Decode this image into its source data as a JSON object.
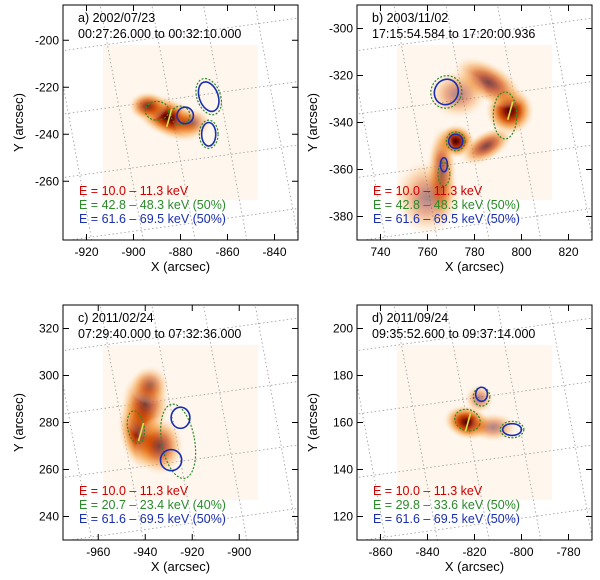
{
  "colors": {
    "low_energy": "#cc0000",
    "mid_energy": "#2a8a2a",
    "high_energy": "#1a2fb0",
    "overlay": "#d8e24a",
    "grid": "#9a9a9a"
  },
  "chart_data": [
    {
      "type": "heatmap",
      "panel": "a",
      "date": "a)  2002/07/23",
      "time_range": "00:27:26.000 to 00:32:10.000",
      "xlabel": "X (arcsec)",
      "ylabel": "Y (arcsec)",
      "xlim": [
        -930,
        -830
      ],
      "ylim": [
        -285,
        -185
      ],
      "xticks": [
        -920,
        -900,
        -880,
        -860,
        -840
      ],
      "yticks": [
        -260,
        -240,
        -220,
        -200
      ],
      "xtick_labels": [
        "-920",
        "-900",
        "-880",
        "-860",
        "-840"
      ],
      "ytick_labels": [
        "-260",
        "-240",
        "-220",
        "-200"
      ],
      "legend": [
        {
          "text": "E = 10.0 –  11.3 keV",
          "color": "#cc0000"
        },
        {
          "text": "E = 42.8 –  48.3 keV (50%)",
          "color": "#2a8a2a"
        },
        {
          "text": "E = 61.6 –  69.5 keV (50%)",
          "color": "#1a2fb0"
        }
      ],
      "emission": [
        {
          "x": -885,
          "y": -233,
          "sx": 8,
          "sy": 4,
          "rot": -25,
          "peak": 1.0
        },
        {
          "x": -894,
          "y": -228,
          "sx": 4,
          "sy": 3,
          "rot": 0,
          "peak": 0.6
        },
        {
          "x": -875,
          "y": -235,
          "sx": 4,
          "sy": 3,
          "rot": 0,
          "peak": 0.35
        }
      ],
      "contours": [
        {
          "band": "mid",
          "x": -890,
          "y": -230,
          "rx": 5,
          "ry": 4,
          "rot": 0
        },
        {
          "band": "mid",
          "x": -868,
          "y": -224,
          "rx": 5,
          "ry": 8,
          "rot": 20
        },
        {
          "band": "mid",
          "x": -868,
          "y": -240,
          "rx": 4,
          "ry": 6,
          "rot": 0
        },
        {
          "band": "mid",
          "x": -880,
          "y": -232,
          "rx": 4,
          "ry": 4,
          "rot": 0
        },
        {
          "band": "high",
          "x": -868,
          "y": -224,
          "rx": 4,
          "ry": 6.5,
          "rot": 20
        },
        {
          "band": "high",
          "x": -868,
          "y": -240,
          "rx": 3,
          "ry": 5,
          "rot": 0
        },
        {
          "band": "high",
          "x": -878,
          "y": -232,
          "rx": 3.5,
          "ry": 3.5,
          "rot": 0
        }
      ]
    },
    {
      "type": "heatmap",
      "panel": "b",
      "date": "b)  2003/11/02",
      "time_range": "17:15:54.584 to 17:20:00.936",
      "xlabel": "X (arcsec)",
      "ylabel": "Y (arcsec)",
      "xlim": [
        730,
        830
      ],
      "ylim": [
        -390,
        -290
      ],
      "xticks": [
        740,
        760,
        780,
        800,
        820
      ],
      "yticks": [
        -380,
        -360,
        -340,
        -320,
        -300
      ],
      "xtick_labels": [
        "740",
        "760",
        "780",
        "800",
        "820"
      ],
      "ytick_labels": [
        "-380",
        "-360",
        "-340",
        "-320",
        "-300"
      ],
      "legend": [
        {
          "text": "E = 10.0 –  11.3 keV",
          "color": "#cc0000"
        },
        {
          "text": "E = 42.8 –  48.3 keV (50%)",
          "color": "#2a8a2a"
        },
        {
          "text": "E = 61.6 –  69.5 keV (50%)",
          "color": "#1a2fb0"
        }
      ],
      "emission": [
        {
          "x": 795,
          "y": -335,
          "sx": 5,
          "sy": 5,
          "rot": 0,
          "peak": 0.95
        },
        {
          "x": 786,
          "y": -323,
          "sx": 8,
          "sy": 4,
          "rot": -30,
          "peak": 0.55
        },
        {
          "x": 772,
          "y": -348,
          "sx": 4,
          "sy": 3.5,
          "rot": 0,
          "peak": 0.9
        },
        {
          "x": 785,
          "y": -350,
          "sx": 6,
          "sy": 3,
          "rot": 30,
          "peak": 0.7
        },
        {
          "x": 766,
          "y": -362,
          "sx": 3,
          "sy": 10,
          "rot": 0,
          "peak": 0.6
        },
        {
          "x": 773,
          "y": -328,
          "sx": 6,
          "sy": 5,
          "rot": 0,
          "peak": 0.35
        },
        {
          "x": 760,
          "y": -372,
          "sx": 7,
          "sy": 8,
          "rot": 0,
          "peak": 0.2
        }
      ],
      "contours": [
        {
          "band": "mid",
          "x": 768,
          "y": -327,
          "rx": 6.5,
          "ry": 7,
          "rot": -25
        },
        {
          "band": "mid",
          "x": 772,
          "y": -348,
          "rx": 4,
          "ry": 4,
          "rot": 0
        },
        {
          "band": "mid",
          "x": 793,
          "y": -337,
          "rx": 5,
          "ry": 10,
          "rot": 0
        },
        {
          "band": "mid",
          "x": 767,
          "y": -362,
          "rx": 2.5,
          "ry": 5,
          "rot": 0
        },
        {
          "band": "high",
          "x": 768,
          "y": -327,
          "rx": 5,
          "ry": 5.5,
          "rot": -25
        },
        {
          "band": "high",
          "x": 772,
          "y": -348,
          "rx": 3,
          "ry": 3,
          "rot": 0
        },
        {
          "band": "high",
          "x": 767,
          "y": -358,
          "rx": 1.5,
          "ry": 3,
          "rot": 0
        }
      ]
    },
    {
      "type": "heatmap",
      "panel": "c",
      "date": "c)  2011/02/24",
      "time_range": "07:29:40.000 to 07:32:36.000",
      "xlabel": "X (arcsec)",
      "ylabel": "Y (arcsec)",
      "xlim": [
        -975,
        -875
      ],
      "ylim": [
        230,
        330
      ],
      "xticks": [
        -960,
        -940,
        -920,
        -900
      ],
      "yticks": [
        240,
        260,
        280,
        300,
        320
      ],
      "xtick_labels": [
        "-960",
        "-940",
        "-920",
        "-900"
      ],
      "ytick_labels": [
        "240",
        "260",
        "280",
        "300",
        "320"
      ],
      "legend": [
        {
          "text": "E = 10.0 –  11.3 keV",
          "color": "#cc0000"
        },
        {
          "text": "E = 20.7 –  23.4 keV (40%)",
          "color": "#2a8a2a"
        },
        {
          "text": "E = 61.6 –  69.5 keV (50%)",
          "color": "#1a2fb0"
        }
      ],
      "emission": [
        {
          "x": -942,
          "y": 276,
          "sx": 4.5,
          "sy": 8,
          "rot": 10,
          "peak": 1.0
        },
        {
          "x": -940,
          "y": 288,
          "sx": 5,
          "sy": 7,
          "rot": 0,
          "peak": 0.55
        },
        {
          "x": -934,
          "y": 270,
          "sx": 5,
          "sy": 6,
          "rot": 0,
          "peak": 0.5
        },
        {
          "x": -938,
          "y": 296,
          "sx": 4,
          "sy": 4,
          "rot": 0,
          "peak": 0.25
        }
      ],
      "contours": [
        {
          "band": "mid",
          "x": -944,
          "y": 278,
          "rx": 3.5,
          "ry": 7,
          "rot": 10
        },
        {
          "band": "mid",
          "x": -926,
          "y": 272,
          "rx": 7,
          "ry": 16,
          "rot": 10
        },
        {
          "band": "high",
          "x": -925,
          "y": 282,
          "rx": 4,
          "ry": 4.5,
          "rot": 0
        },
        {
          "band": "high",
          "x": -929,
          "y": 264,
          "rx": 4.5,
          "ry": 4.5,
          "rot": 0
        }
      ]
    },
    {
      "type": "heatmap",
      "panel": "d",
      "date": "d)  2011/09/24",
      "time_range": "09:35:52.600 to 09:37:14.000",
      "xlabel": "X (arcsec)",
      "ylabel": "Y (arcsec)",
      "xlim": [
        -870,
        -770
      ],
      "ylim": [
        110,
        210
      ],
      "xticks": [
        -860,
        -840,
        -820,
        -800,
        -780
      ],
      "yticks": [
        120,
        140,
        160,
        180,
        200
      ],
      "xtick_labels": [
        "-860",
        "-840",
        "-820",
        "-800",
        "-780"
      ],
      "ytick_labels": [
        "120",
        "140",
        "160",
        "180",
        "200"
      ],
      "legend": [
        {
          "text": "E = 10.0 –  11.3 keV",
          "color": "#cc0000"
        },
        {
          "text": "E = 29.8 –  33.6 keV (50%)",
          "color": "#2a8a2a"
        },
        {
          "text": "E = 61.6 –  69.5 keV (50%)",
          "color": "#1a2fb0"
        }
      ],
      "emission": [
        {
          "x": -823,
          "y": 160,
          "sx": 5,
          "sy": 3.5,
          "rot": -15,
          "peak": 1.0
        },
        {
          "x": -812,
          "y": 158,
          "sx": 5,
          "sy": 3,
          "rot": 0,
          "peak": 0.4
        },
        {
          "x": -818,
          "y": 170,
          "sx": 3,
          "sy": 3,
          "rot": 0,
          "peak": 0.3
        }
      ],
      "contours": [
        {
          "band": "mid",
          "x": -823,
          "y": 161,
          "rx": 5.5,
          "ry": 4.5,
          "rot": -20
        },
        {
          "band": "mid",
          "x": -817,
          "y": 171,
          "rx": 3.5,
          "ry": 4,
          "rot": 0
        },
        {
          "band": "mid",
          "x": -804,
          "y": 157,
          "rx": 5,
          "ry": 3.5,
          "rot": 0
        },
        {
          "band": "high",
          "x": -817,
          "y": 172,
          "rx": 2.5,
          "ry": 3,
          "rot": 0
        },
        {
          "band": "high",
          "x": -804,
          "y": 157,
          "rx": 4,
          "ry": 2.5,
          "rot": 0
        }
      ]
    }
  ]
}
